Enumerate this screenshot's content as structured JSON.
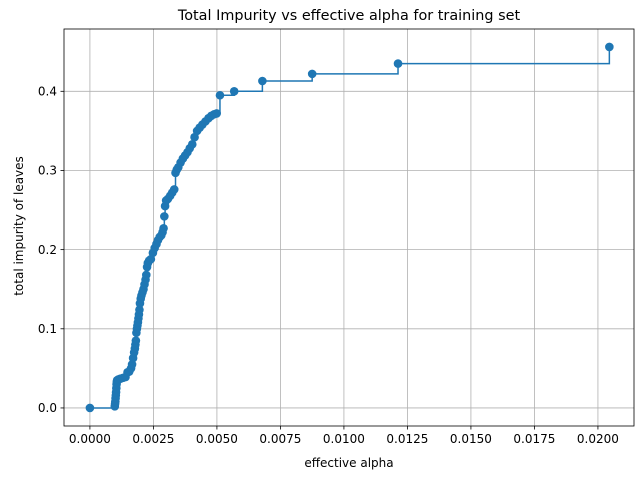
{
  "chart_data": {
    "type": "line",
    "title": "Total Impurity vs effective alpha for training set",
    "xlabel": "effective alpha",
    "ylabel": "total impurity of leaves",
    "xlim": [
      -0.00102,
      0.02142
    ],
    "ylim": [
      -0.0228,
      0.4787
    ],
    "xticks": [
      0.0,
      0.0025,
      0.005,
      0.0075,
      0.01,
      0.0125,
      0.015,
      0.0175,
      0.02
    ],
    "xtick_labels": [
      "0.0000",
      "0.0025",
      "0.0050",
      "0.0075",
      "0.0100",
      "0.0125",
      "0.0150",
      "0.0175",
      "0.0200"
    ],
    "yticks": [
      0.0,
      0.1,
      0.2,
      0.3,
      0.4
    ],
    "ytick_labels": [
      "0.0",
      "0.1",
      "0.2",
      "0.3",
      "0.4"
    ],
    "grid": true,
    "step": "post",
    "marker": "circle",
    "color": "#1f77b4",
    "x": [
      0.0,
      0.00098,
      0.00099,
      0.001,
      0.00101,
      0.00102,
      0.00103,
      0.00104,
      0.00105,
      0.00106,
      0.00107,
      0.00112,
      0.0012,
      0.0013,
      0.0014,
      0.00148,
      0.00155,
      0.00162,
      0.00166,
      0.0017,
      0.00174,
      0.00177,
      0.00179,
      0.00181,
      0.00183,
      0.00185,
      0.00187,
      0.00189,
      0.00191,
      0.00193,
      0.00195,
      0.00197,
      0.002,
      0.00203,
      0.00207,
      0.00211,
      0.00215,
      0.00219,
      0.00222,
      0.00225,
      0.00228,
      0.00233,
      0.0024,
      0.00248,
      0.00255,
      0.00262,
      0.00268,
      0.00275,
      0.00281,
      0.00286,
      0.0029,
      0.00293,
      0.00296,
      0.003,
      0.00307,
      0.00316,
      0.00324,
      0.00332,
      0.00337,
      0.00342,
      0.00348,
      0.00357,
      0.00366,
      0.00375,
      0.00384,
      0.00393,
      0.00403,
      0.00412,
      0.00422,
      0.00432,
      0.00443,
      0.00455,
      0.00467,
      0.00478,
      0.00489,
      0.00499,
      0.00512,
      0.00568,
      0.00679,
      0.00875,
      0.01213,
      0.02045
    ],
    "y": [
      0.0,
      0.002,
      0.005,
      0.008,
      0.012,
      0.016,
      0.02,
      0.025,
      0.03,
      0.033,
      0.035,
      0.036,
      0.037,
      0.038,
      0.039,
      0.045,
      0.046,
      0.05,
      0.055,
      0.063,
      0.07,
      0.075,
      0.08,
      0.085,
      0.095,
      0.1,
      0.104,
      0.108,
      0.113,
      0.118,
      0.124,
      0.132,
      0.138,
      0.142,
      0.146,
      0.15,
      0.156,
      0.162,
      0.168,
      0.178,
      0.183,
      0.186,
      0.188,
      0.196,
      0.202,
      0.207,
      0.212,
      0.216,
      0.218,
      0.222,
      0.227,
      0.242,
      0.255,
      0.262,
      0.264,
      0.268,
      0.272,
      0.276,
      0.297,
      0.301,
      0.304,
      0.31,
      0.315,
      0.319,
      0.323,
      0.328,
      0.333,
      0.342,
      0.35,
      0.354,
      0.358,
      0.362,
      0.366,
      0.369,
      0.371,
      0.372,
      0.395,
      0.4,
      0.413,
      0.422,
      0.435,
      0.456
    ]
  }
}
